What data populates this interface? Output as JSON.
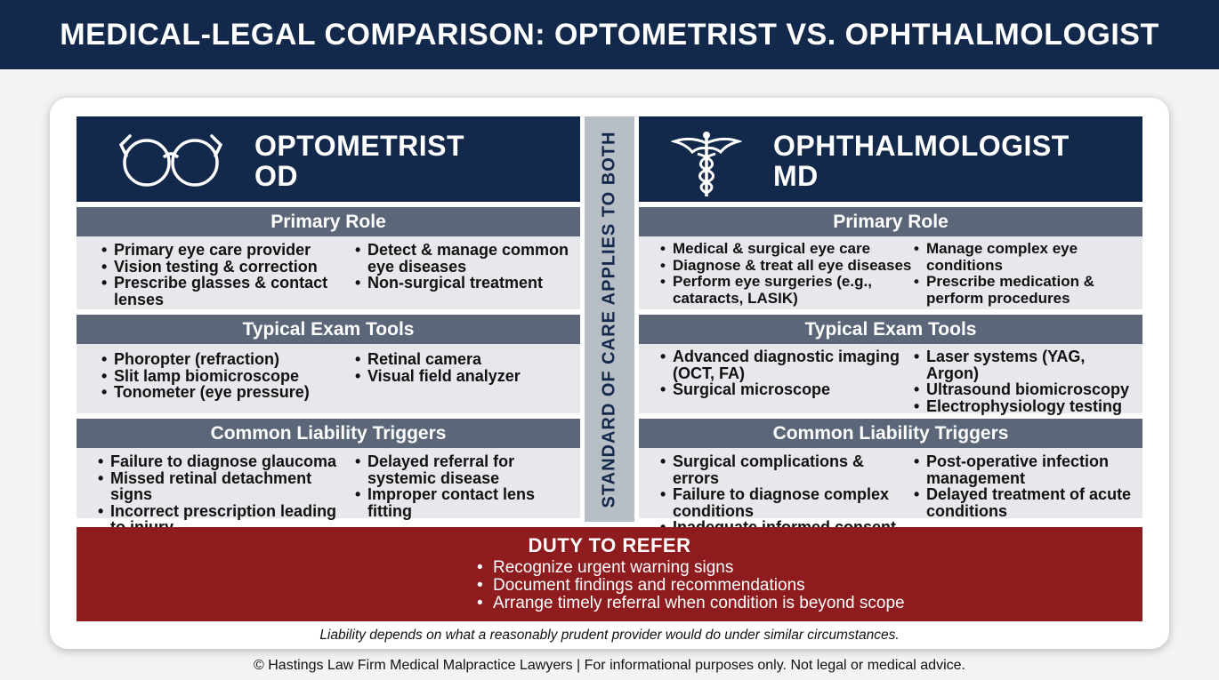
{
  "title": "MEDICAL-LEGAL COMPARISON: OPTOMETRIST VS. OPHTHALMOLOGIST",
  "divider_label": "STANDARD OF CARE APPLIES TO BOTH",
  "optometrist": {
    "icon": "glasses-icon",
    "name": "OPTOMETRIST",
    "credential": "OD",
    "primary_role": {
      "heading": "Primary Role",
      "col1": [
        "Primary eye care provider",
        "Vision testing & correction",
        "Prescribe glasses & contact lenses"
      ],
      "col2": [
        "Detect & manage common eye diseases",
        "Non-surgical treatment"
      ]
    },
    "exam_tools": {
      "heading": "Typical Exam Tools",
      "col1": [
        "Phoropter (refraction)",
        "Slit lamp biomicroscope",
        "Tonometer (eye pressure)"
      ],
      "col2": [
        "Retinal camera",
        "Visual field analyzer"
      ]
    },
    "liability": {
      "heading": "Common Liability Triggers",
      "col1": [
        "Failure to diagnose glaucoma",
        "Missed retinal detachment signs",
        "Incorrect prescription leading to injury"
      ],
      "col2": [
        "Delayed referral for systemic disease",
        "Improper contact lens fitting"
      ]
    }
  },
  "ophthalmologist": {
    "icon": "caduceus-icon",
    "name": "OPHTHALMOLOGIST",
    "credential": "MD",
    "primary_role": {
      "heading": "Primary Role",
      "col1": [
        "Medical & surgical eye care",
        "Diagnose & treat all eye diseases",
        "Perform eye surgeries (e.g., cataracts, LASIK)"
      ],
      "col2": [
        "Manage complex eye conditions",
        "Prescribe medication & perform procedures"
      ]
    },
    "exam_tools": {
      "heading": "Typical Exam Tools",
      "col1": [
        "Advanced diagnostic imaging (OCT, FA)",
        "Surgical microscope"
      ],
      "col2": [
        "Laser systems (YAG, Argon)",
        "Ultrasound biomicroscopy",
        "Electrophysiology testing"
      ]
    },
    "liability": {
      "heading": "Common Liability Triggers",
      "col1": [
        "Surgical complications & errors",
        "Failure to diagnose complex conditions",
        "Inadequate informed consent"
      ],
      "col2": [
        "Post-operative infection management",
        "Delayed treatment of acute conditions"
      ]
    }
  },
  "duty_to_refer": {
    "heading": "DUTY TO REFER",
    "items": [
      "Recognize urgent warning signs",
      "Document findings and recommendations",
      "Arrange timely referral when condition is beyond scope"
    ]
  },
  "note": "Liability depends on what a reasonably prudent provider would do under similar circumstances.",
  "footer": "© Hastings Law Firm Medical Malpractice Lawyers | For informational purposes only. Not legal or medical advice.",
  "colors": {
    "navy": "#13294b",
    "section_gray": "#5b6778",
    "body_gray": "#e6e8eb",
    "divider_gray": "#b8bec6",
    "refer_red": "#8e1c1f"
  }
}
